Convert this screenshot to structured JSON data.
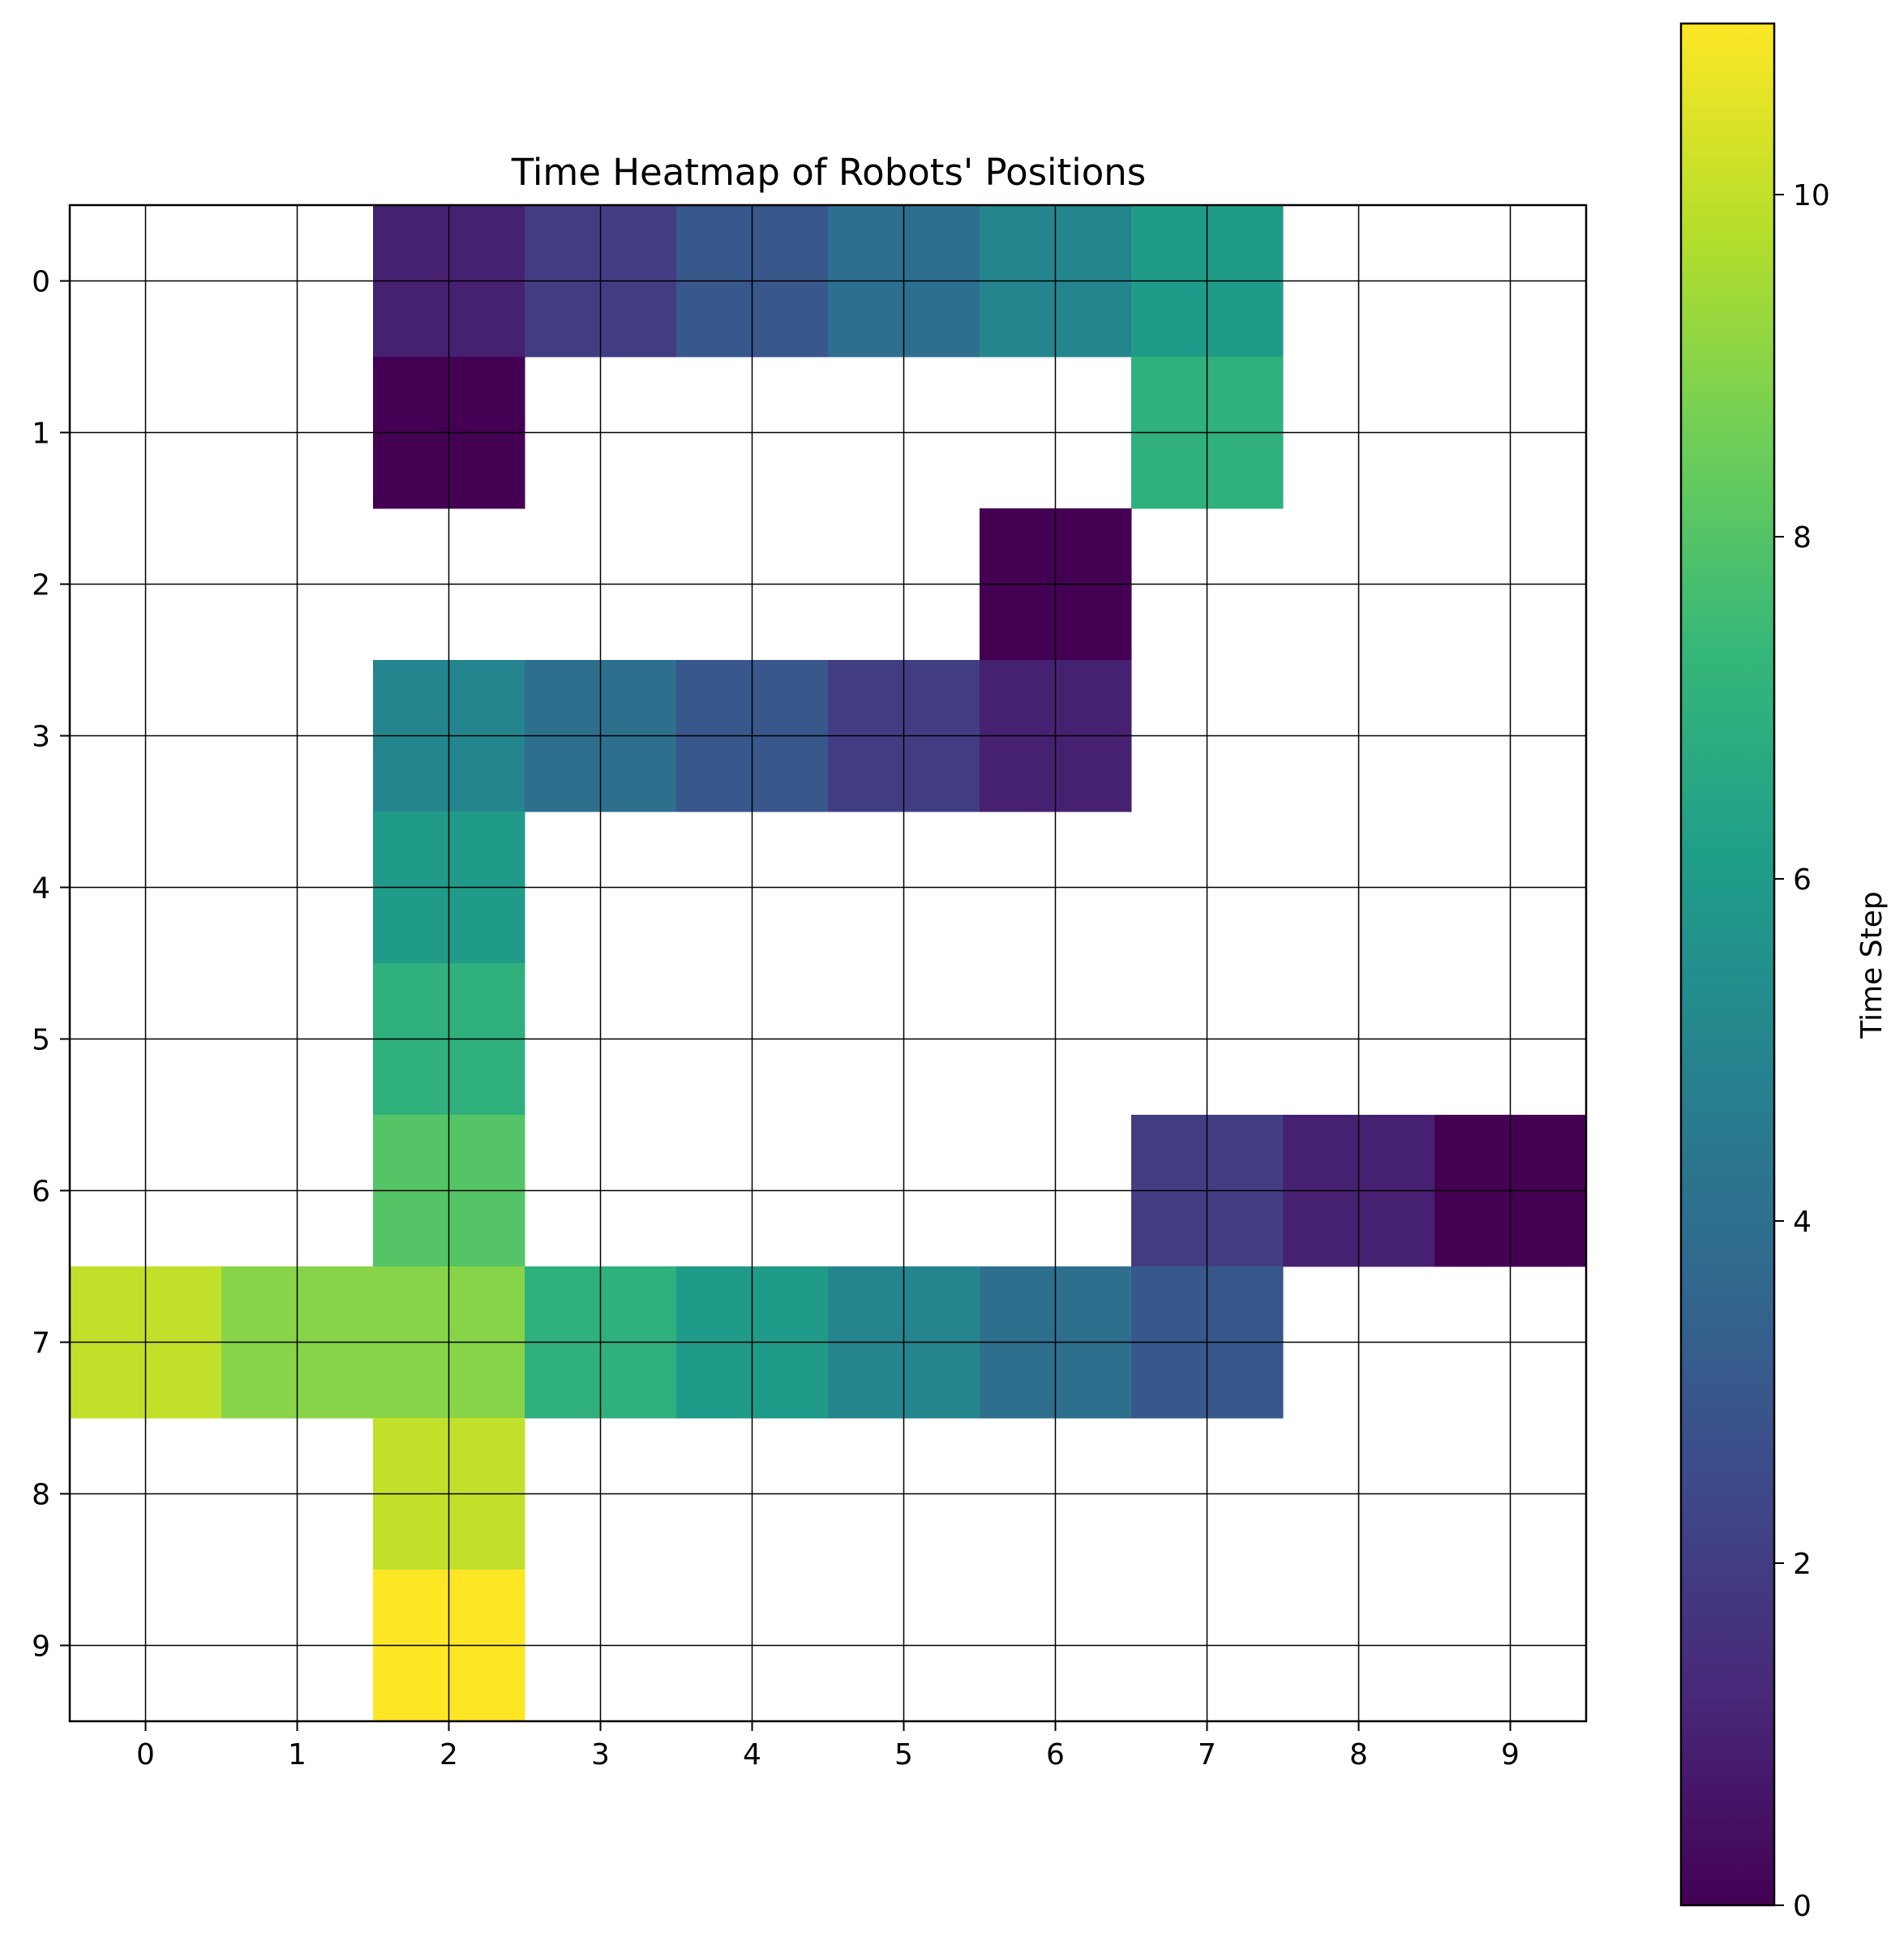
{
  "chart_data": {
    "type": "heatmap",
    "title": "Time Heatmap of Robots' Positions",
    "xlabel": "",
    "ylabel": "",
    "x_ticks": [
      "0",
      "1",
      "2",
      "3",
      "4",
      "5",
      "6",
      "7",
      "8",
      "9"
    ],
    "y_ticks": [
      "0",
      "1",
      "2",
      "3",
      "4",
      "5",
      "6",
      "7",
      "8",
      "9"
    ],
    "grid": true,
    "colormap": "viridis",
    "colorbar": {
      "label": "Time Step",
      "range": [
        0,
        11
      ],
      "ticks": [
        "0",
        "2",
        "4",
        "6",
        "8",
        "10"
      ]
    },
    "values": [
      [
        null,
        null,
        1,
        2,
        3,
        4,
        5,
        6,
        null,
        null
      ],
      [
        null,
        null,
        0,
        null,
        null,
        null,
        null,
        7,
        null,
        null
      ],
      [
        null,
        null,
        null,
        null,
        null,
        null,
        0,
        null,
        null,
        null
      ],
      [
        null,
        null,
        5,
        4,
        3,
        2,
        1,
        null,
        null,
        null
      ],
      [
        null,
        null,
        6,
        null,
        null,
        null,
        null,
        null,
        null,
        null
      ],
      [
        null,
        null,
        7,
        null,
        null,
        null,
        null,
        null,
        null,
        null
      ],
      [
        null,
        null,
        8,
        null,
        null,
        null,
        null,
        2,
        1,
        0
      ],
      [
        10,
        9,
        9,
        7,
        6,
        5,
        4,
        3,
        null,
        null
      ],
      [
        null,
        null,
        10,
        null,
        null,
        null,
        null,
        null,
        null,
        null
      ],
      [
        null,
        null,
        11,
        null,
        null,
        null,
        null,
        null,
        null,
        null
      ]
    ]
  }
}
